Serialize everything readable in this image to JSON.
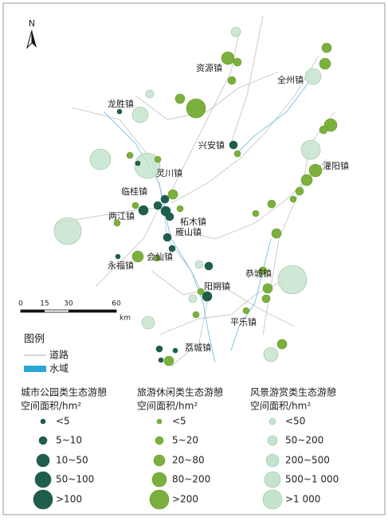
{
  "map": {
    "north": "N",
    "towns": [
      "资源镇",
      "全州镇",
      "龙胜镇",
      "兴安镇",
      "灌阳镇",
      "灵川镇",
      "临桂镇",
      "两江镇",
      "柘木镇",
      "雁山镇",
      "会仙镇",
      "永福镇",
      "恭城镇",
      "阳朔镇",
      "平乐镇",
      "荔城镇"
    ],
    "scale": {
      "ticks": [
        "0",
        "15",
        "30",
        "60"
      ],
      "unit": "km"
    }
  },
  "legend": {
    "title": "图例",
    "road": "道路",
    "water": "水域",
    "groups": [
      {
        "title": [
          "城市公园类生态游憩",
          "空间面积/hm²"
        ],
        "classes": [
          "<5",
          "5~10",
          "10~50",
          "50~100",
          ">100"
        ]
      },
      {
        "title": [
          "旅游休闲类生态游憩",
          "空间面积/hm²"
        ],
        "classes": [
          "<5",
          "5~20",
          "20~80",
          "80~200",
          ">200"
        ]
      },
      {
        "title": [
          "风景游赏类生态游憩",
          "空间面积/hm²"
        ],
        "classes": [
          "<50",
          "50~200",
          "200~500",
          "500~1 000",
          ">1 000"
        ]
      }
    ]
  }
}
